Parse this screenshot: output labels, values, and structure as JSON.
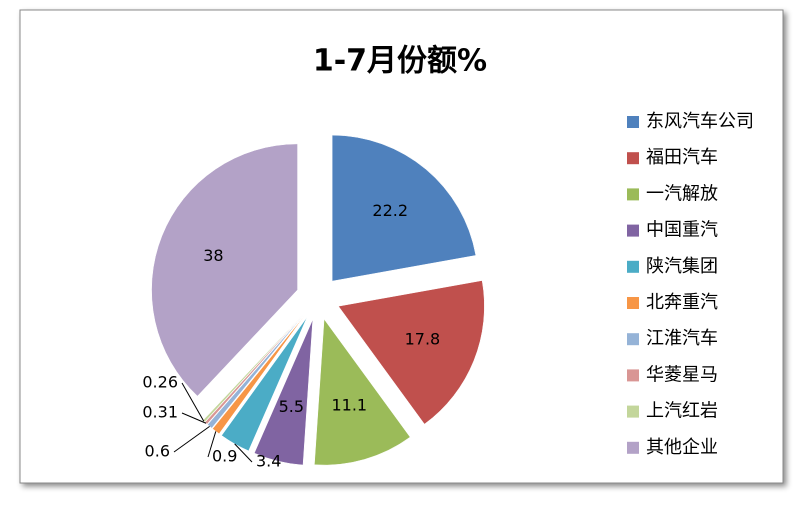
{
  "chart_data": {
    "type": "pie",
    "title": "1-7月份额%",
    "categories": [
      "东风汽车公司",
      "福田汽车",
      "一汽解放",
      "中国重汽",
      "陕汽集团",
      "北奔重汽",
      "江淮汽车",
      "华菱星马",
      "上汽红岩",
      "其他企业"
    ],
    "values": [
      22.2,
      17.8,
      11.1,
      5.5,
      3.4,
      0.9,
      0.6,
      0.31,
      0.26,
      38
    ],
    "colors": [
      "#4f81bd",
      "#c0504d",
      "#9bbb59",
      "#8064a2",
      "#4bacc6",
      "#f79646",
      "#95b3d7",
      "#d99694",
      "#c3d69b",
      "#b3a2c7"
    ],
    "legend": "right"
  }
}
